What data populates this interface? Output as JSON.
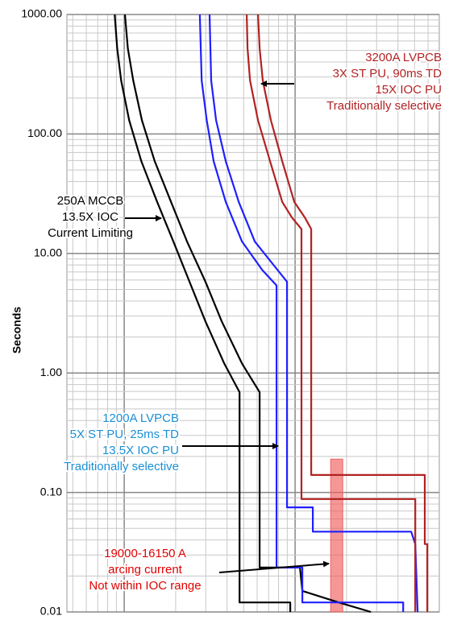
{
  "chart_data": {
    "type": "line",
    "y_label": "Seconds",
    "xscale": "log",
    "yscale": "log",
    "grid": true,
    "xlim": [
      462,
      69800
    ],
    "ylim": [
      0.01,
      1000
    ],
    "yticks": [
      {
        "value": 1000,
        "label": "1000.00"
      },
      {
        "value": 100,
        "label": "100.00"
      },
      {
        "value": 10,
        "label": "10.00"
      },
      {
        "value": 1,
        "label": "1.00"
      },
      {
        "value": 0.1,
        "label": "0.10"
      },
      {
        "value": 0.01,
        "label": "0.01"
      }
    ],
    "series": [
      {
        "color": "#000000",
        "x": [
          880,
          910,
          960,
          1070,
          1260,
          1560,
          1940,
          2410,
          2990,
          3850,
          4730,
          4730,
          9370,
          9370
        ],
        "y": [
          1000,
          520,
          280,
          130,
          59,
          27,
          12.6,
          5.8,
          2.7,
          1.2,
          0.69,
          0.012,
          0.012,
          0.01
        ]
      },
      {
        "color": "#000000",
        "x": [
          1010,
          1050,
          1130,
          1270,
          1510,
          1880,
          2330,
          2990,
          3720,
          4890,
          6200,
          6200,
          10670,
          11030,
          17990,
          27750
        ],
        "y": [
          1000,
          520,
          280,
          130,
          59,
          27,
          12.6,
          5.8,
          2.7,
          1.2,
          0.69,
          0.0235,
          0.0235,
          0.015,
          0.012,
          0.01
        ]
      },
      {
        "color": "#1f1fff",
        "x": [
          2770,
          2840,
          3040,
          3340,
          3930,
          4890,
          6410,
          7790,
          7790,
          11030,
          11030,
          42900,
          42900
        ],
        "y": [
          1000,
          280,
          130,
          59,
          27,
          12.6,
          7.3,
          5.4,
          0.0235,
          0.0235,
          0.012,
          0.012,
          0.01
        ]
      },
      {
        "color": "#1f1fff",
        "x": [
          3160,
          3230,
          3450,
          3930,
          4680,
          5810,
          7540,
          8970,
          8970,
          12700,
          12700,
          47800,
          50500,
          52100
        ],
        "y": [
          1000,
          280,
          130,
          59,
          27,
          12.6,
          7.9,
          5.8,
          0.075,
          0.075,
          0.047,
          0.047,
          0.037,
          0.01
        ]
      },
      {
        "color": "#b22222",
        "x": [
          5210,
          5270,
          5450,
          6070,
          7140,
          8410,
          9580,
          10900,
          10900,
          50500,
          50500
        ],
        "y": [
          1000,
          520,
          280,
          130,
          59,
          27,
          20,
          16,
          0.088,
          0.088,
          0.01
        ]
      },
      {
        "color": "#b22222",
        "x": [
          6070,
          6200,
          6470,
          7220,
          8410,
          9890,
          11400,
          12420,
          12420,
          57400,
          57400,
          59400,
          59400
        ],
        "y": [
          1000,
          520,
          280,
          130,
          59,
          27,
          20,
          16,
          0.14,
          0.14,
          0.037,
          0.037,
          0.01
        ]
      }
    ],
    "bands": [
      {
        "x": [
          16150,
          19000
        ],
        "y": [
          0.01,
          0.19
        ],
        "color": "#f06060"
      }
    ],
    "annotations": [
      {
        "lines": [
          "3200A LVPCB",
          "3X ST PU, 90ms TD",
          "15X IOC PU",
          "Traditionally selective"
        ],
        "color": "#b22222"
      },
      {
        "lines": [
          "250A MCCB",
          "13.5X IOC",
          "Current Limiting"
        ],
        "color": "#000000"
      },
      {
        "lines": [
          "1200A LVPCB",
          "5X ST PU, 25ms TD",
          "13.5X IOC PU",
          "Traditionally selective"
        ],
        "color": "#1a8fd6"
      },
      {
        "lines": [
          "19000-16150 A",
          "arcing current",
          "Not within IOC range"
        ],
        "color": "#e00000"
      }
    ]
  }
}
